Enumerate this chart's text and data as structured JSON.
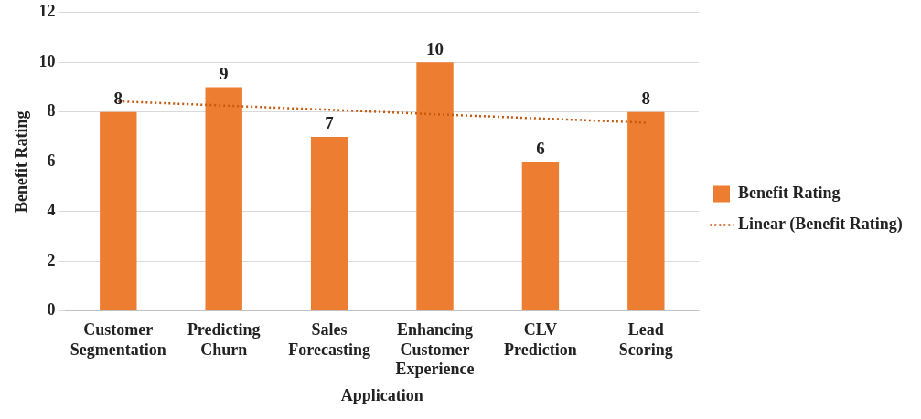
{
  "chart_data": {
    "type": "bar",
    "xlabel": "Application",
    "ylabel": "Benefit Rating",
    "categories": [
      "Customer Segmentation",
      "Predicting Churn",
      "Sales Forecasting",
      "Enhancing Customer Experience",
      "CLV Prediction",
      "Lead Scoring"
    ],
    "series": [
      {
        "name": "Benefit Rating",
        "color": "#ed7d31",
        "values": [
          8,
          9,
          7,
          10,
          6,
          8
        ],
        "value_labels": [
          "8",
          "9",
          "7",
          "10",
          "6",
          "8"
        ]
      },
      {
        "name": "Linear (Benefit Rating)",
        "type": "line",
        "color": "#c55a11",
        "line_style": "dotted",
        "marker": "none",
        "values": [
          8.43,
          8.26,
          8.09,
          7.91,
          7.74,
          7.57
        ]
      }
    ],
    "ylim": [
      0,
      12
    ],
    "yticks": [
      0,
      2,
      4,
      6,
      8,
      10,
      12
    ],
    "grid": "y",
    "legend": "right"
  }
}
